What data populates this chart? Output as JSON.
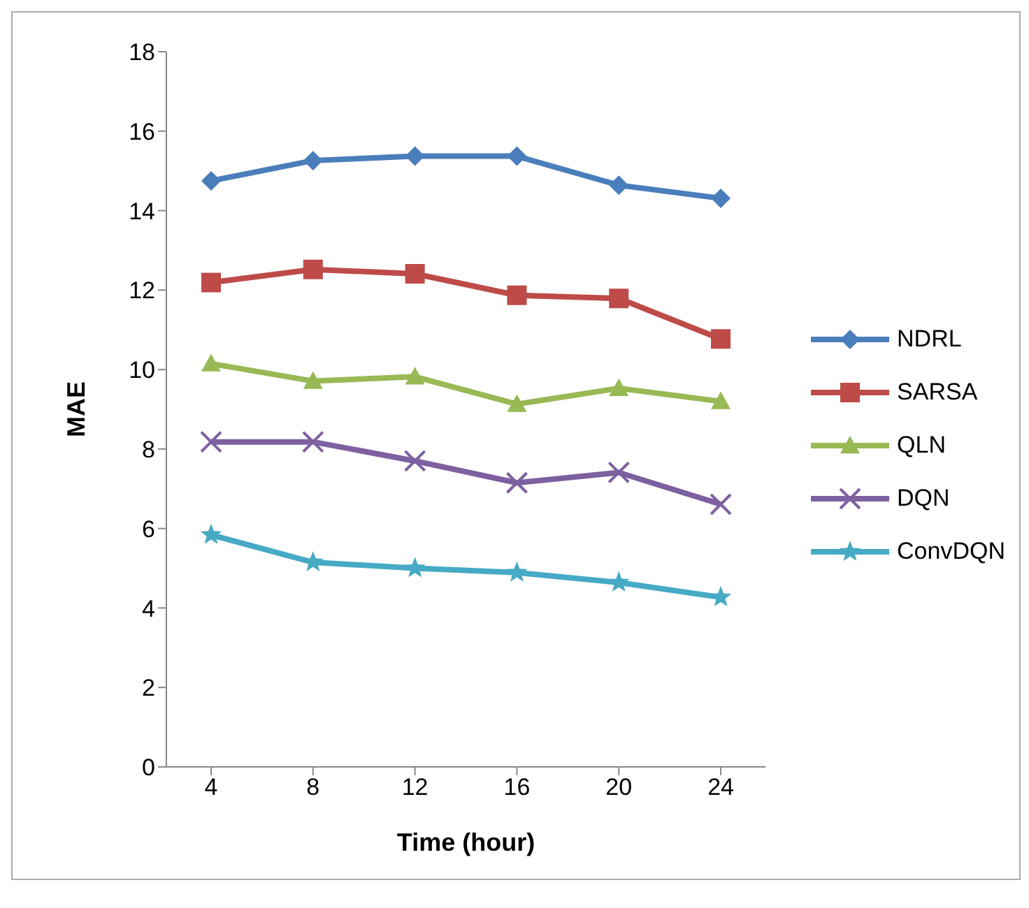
{
  "chart_data": {
    "type": "line",
    "xlabel": "Time (hour)",
    "ylabel": "MAE",
    "categories": [
      "4",
      "8",
      "12",
      "16",
      "20",
      "24"
    ],
    "ylim": [
      0,
      18
    ],
    "yticks": [
      0,
      2,
      4,
      6,
      8,
      10,
      12,
      14,
      16,
      18
    ],
    "grid": false,
    "legend": "right",
    "series": [
      {
        "name": "NDRL",
        "color": "#4a7ebb",
        "marker": "diamond",
        "values": [
          14.75,
          15.26,
          15.37,
          15.37,
          14.64,
          14.31
        ]
      },
      {
        "name": "SARSA",
        "color": "#be4b48",
        "marker": "square",
        "values": [
          12.19,
          12.52,
          12.41,
          11.87,
          11.79,
          10.77
        ]
      },
      {
        "name": "QLN",
        "color": "#98b954",
        "marker": "triangle",
        "values": [
          10.15,
          9.71,
          9.82,
          9.13,
          9.53,
          9.2
        ]
      },
      {
        "name": "DQN",
        "color": "#7d60a0",
        "marker": "cross",
        "values": [
          8.18,
          8.18,
          7.7,
          7.15,
          7.41,
          6.61
        ]
      },
      {
        "name": "ConvDQN",
        "color": "#46aac5",
        "marker": "star",
        "values": [
          5.84,
          5.15,
          5.0,
          4.89,
          4.64,
          4.27
        ]
      }
    ]
  }
}
